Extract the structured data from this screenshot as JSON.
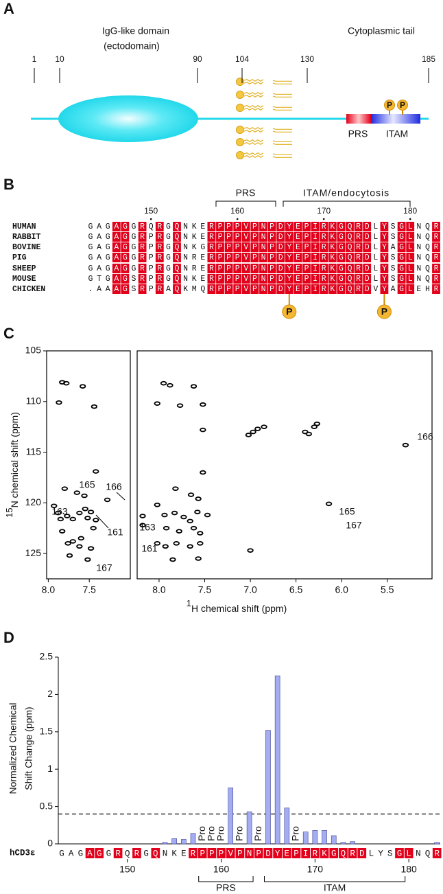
{
  "panels": [
    "A",
    "B",
    "C",
    "D"
  ],
  "domain_diagram": {
    "ecto_label": "IgG-like domain",
    "ecto_sublabel": "(ectodomain)",
    "tail_label": "Cytoplasmic tail",
    "positions": [
      1,
      10,
      90,
      104,
      130,
      185
    ],
    "prs_label": "PRS",
    "itam_label": "ITAM",
    "phospho_label": "P"
  },
  "alignment": {
    "region_labels": [
      "PRS",
      "ITAM/endocytosis"
    ],
    "xlim": [
      142.5,
      183.5
    ],
    "xticks": [
      150,
      160,
      170,
      180
    ],
    "highlight_color": "#e3001b",
    "highlighted_columns": [
      3,
      4,
      6,
      8,
      10,
      14,
      15,
      16,
      17,
      18,
      19,
      20,
      21,
      22,
      23,
      24,
      25,
      26,
      27,
      28,
      29,
      30,
      31,
      32,
      34,
      36,
      37,
      40
    ],
    "sequences": [
      {
        "name": "HUMAN",
        "sequence": "GAGAGGRQRGQNKERPPPVPNPDYEPIRKGQRDLYSGLNQR"
      },
      {
        "name": "RABBIT",
        "sequence": "GAGAGGRPRGQNKERPPPVPNPDYEPIRKGQRDLYSGLNQR"
      },
      {
        "name": "BOVINE",
        "sequence": "GAGAGGRPRGQNKGRPPPVPNPDYEPIRKGQRDLYAGLNQR"
      },
      {
        "name": "PIG",
        "sequence": "GAGAGGRPRGQNRERPPPVPNPDYEPIRKGQRDLYSGLNQR"
      },
      {
        "name": "SHEEP",
        "sequence": "GAGAGGRPRGQNRERPPPVPNPDYEPIRKGQRDLYSGLNQR"
      },
      {
        "name": "MOUSE",
        "sequence": "GTGAGSRPRGQNKERPPPVPNPDYEPIRKGQRDLYSGLNQR"
      },
      {
        "name": "CHICKEN",
        "sequence": ".AAAGSRPRAQKMQRPPPVPNPDYEPIRKGQRDVYAGLEHR"
      }
    ],
    "phospho_label": "P"
  },
  "chart_data": [
    {
      "type": "scatter",
      "xlim": [
        8.02,
        7.0
      ],
      "xticks": [
        {
          "value": 8,
          "label": "8.0"
        },
        7.5
      ],
      "ylim": [
        105,
        127.5
      ],
      "yticks": [
        105,
        110,
        115,
        120,
        125
      ],
      "ylabel_isotope": "15",
      "ylabel": "N chemical shift (ppm)",
      "x": [
        7.83,
        7.78,
        7.58,
        7.87,
        7.44,
        7.42,
        7.8,
        7.65,
        7.56,
        7.93,
        7.88,
        7.85,
        7.77,
        7.7,
        7.62,
        7.55,
        7.48,
        7.52,
        7.28,
        7.42,
        7.83,
        7.6,
        7.76,
        7.7,
        7.45,
        7.62,
        7.48,
        7.74,
        7.52
      ],
      "y": [
        108.1,
        108.2,
        108.5,
        110.1,
        110.5,
        116.9,
        118.6,
        119.0,
        119.3,
        120.3,
        121.0,
        121.6,
        121.3,
        121.6,
        121.0,
        120.6,
        120.9,
        121.5,
        119.7,
        121.7,
        122.8,
        123.5,
        124.0,
        123.8,
        122.5,
        124.3,
        124.5,
        125.2,
        125.6
      ],
      "color": "#000000",
      "annotations": [
        "165",
        "166",
        "163",
        "161",
        "167"
      ]
    },
    {
      "type": "scatter",
      "xlim": [
        8.24,
        5.01
      ],
      "xticks": [
        {
          "value": 8,
          "label": "8.0"
        },
        7.5,
        {
          "value": 7,
          "label": "7.0"
        },
        6.5,
        {
          "value": 6,
          "label": "6.0"
        },
        5.5
      ],
      "ylim": [
        105,
        127.5
      ],
      "xlabel_isotope": "1",
      "xlabel": "H chemical shift (ppm)",
      "x": [
        7.95,
        7.88,
        7.62,
        8.02,
        7.77,
        7.52,
        7.52,
        7.02,
        6.97,
        6.92,
        6.85,
        6.4,
        6.36,
        6.3,
        6.27,
        5.3,
        7.52,
        7.82,
        7.65,
        7.57,
        8.02,
        8.18,
        7.94,
        7.83,
        7.73,
        7.66,
        7.58,
        7.47,
        7.92,
        7.78,
        7.62,
        7.55,
        8.18,
        8.02,
        7.93,
        7.81,
        7.66,
        7.55,
        7.85,
        7.57,
        6.14,
        7.0
      ],
      "y": [
        108.2,
        108.4,
        108.5,
        110.2,
        110.4,
        110.3,
        112.8,
        113.3,
        113.0,
        112.7,
        112.5,
        113.0,
        113.2,
        112.5,
        112.2,
        114.3,
        117.0,
        118.6,
        119.2,
        119.6,
        120.2,
        121.3,
        121.2,
        121.0,
        121.4,
        121.8,
        120.9,
        121.2,
        122.5,
        122.8,
        122.5,
        123.0,
        122.2,
        124.0,
        124.3,
        124.0,
        124.3,
        124.0,
        125.6,
        125.5,
        120.1,
        124.7
      ],
      "color": "#000000",
      "annotations": [
        "166",
        "165",
        "163",
        "161",
        "167"
      ]
    },
    {
      "type": "bar",
      "ylabel": [
        "Normalized Chemical",
        "Shift Change  (ppm)"
      ],
      "row_label": "hCD3ε",
      "categories": [
        "G",
        "A",
        "G",
        "A",
        "G",
        "G",
        "R",
        "Q",
        "R",
        "G",
        "Q",
        "N",
        "K",
        "E",
        "R",
        "P",
        "P",
        "P",
        "V",
        "P",
        "N",
        "P",
        "D",
        "Y",
        "E",
        "P",
        "I",
        "R",
        "K",
        "G",
        "Q",
        "R",
        "D",
        "L",
        "Y",
        "S",
        "G",
        "L",
        "N",
        "Q",
        "R"
      ],
      "values": [
        null,
        null,
        null,
        null,
        null,
        null,
        null,
        null,
        null,
        null,
        null,
        0.02,
        0.07,
        0.06,
        0.14,
        null,
        null,
        null,
        0.75,
        null,
        0.43,
        null,
        1.52,
        2.25,
        0.48,
        null,
        0.16,
        0.18,
        0.18,
        0.11,
        0.02,
        0.03,
        null,
        null,
        null,
        null,
        null,
        null,
        null,
        null,
        0.02
      ],
      "bar_labels": [
        null,
        null,
        null,
        null,
        null,
        null,
        null,
        null,
        null,
        null,
        null,
        null,
        null,
        null,
        null,
        "Pro",
        "Pro",
        "Pro",
        null,
        "Pro",
        null,
        "Pro",
        null,
        null,
        null,
        "Pro",
        null,
        null,
        null,
        null,
        null,
        null,
        null,
        null,
        null,
        null,
        null,
        null,
        null,
        null,
        null
      ],
      "color": "#a4acf2",
      "threshold": 0.4,
      "ylim": [
        0,
        2.5
      ],
      "yticks": [
        0,
        0.5,
        1,
        1.5,
        2,
        2.5
      ],
      "xlim": [
        142.5,
        183.5
      ],
      "xticks": [
        150,
        160,
        170,
        180
      ],
      "highlight_color": "#e3001b",
      "highlighted_columns": [
        3,
        4,
        6,
        8,
        10,
        14,
        15,
        16,
        17,
        18,
        19,
        20,
        21,
        22,
        23,
        24,
        25,
        26,
        27,
        28,
        29,
        30,
        31,
        32,
        36,
        37,
        40
      ],
      "region_labels": [
        "PRS",
        "ITAM"
      ]
    }
  ]
}
